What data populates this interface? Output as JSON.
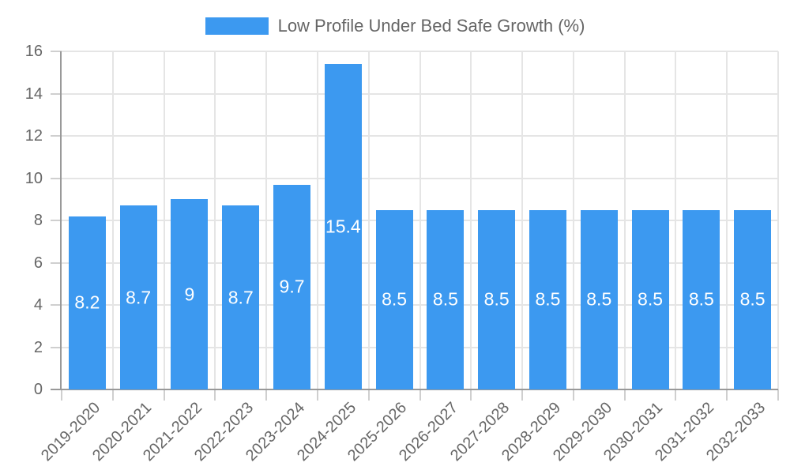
{
  "chart_data": {
    "type": "bar",
    "title": "Low Profile Under Bed Safe Growth (%)",
    "categories": [
      "2019-2020",
      "2020-2021",
      "2021-2022",
      "2022-2023",
      "2023-2024",
      "2024-2025",
      "2025-2026",
      "2026-2027",
      "2027-2028",
      "2028-2029",
      "2029-2030",
      "2030-2031",
      "2031-2032",
      "2032-2033"
    ],
    "values": [
      8.2,
      8.7,
      9,
      8.7,
      9.7,
      15.4,
      8.5,
      8.5,
      8.5,
      8.5,
      8.5,
      8.5,
      8.5,
      8.5
    ],
    "value_labels": [
      "8.2",
      "8.7",
      "9",
      "8.7",
      "9.7",
      "15.4",
      "8.5",
      "8.5",
      "8.5",
      "8.5",
      "8.5",
      "8.5",
      "8.5",
      "8.5"
    ],
    "xlabel": "",
    "ylabel": "",
    "ylim": [
      0,
      16
    ],
    "yticks": [
      0,
      2,
      4,
      6,
      8,
      10,
      12,
      14,
      16
    ],
    "grid": true,
    "legend_position": "top",
    "bar_label_position": "inside-center",
    "x_label_rotation_deg": -45
  },
  "colors": {
    "bar": "#3c99f0",
    "bar_label": "#ffffff",
    "grid": "#e5e5e5",
    "tick": "#cfcfcf",
    "axis": "#999999",
    "text": "#666666",
    "background": "#ffffff"
  }
}
